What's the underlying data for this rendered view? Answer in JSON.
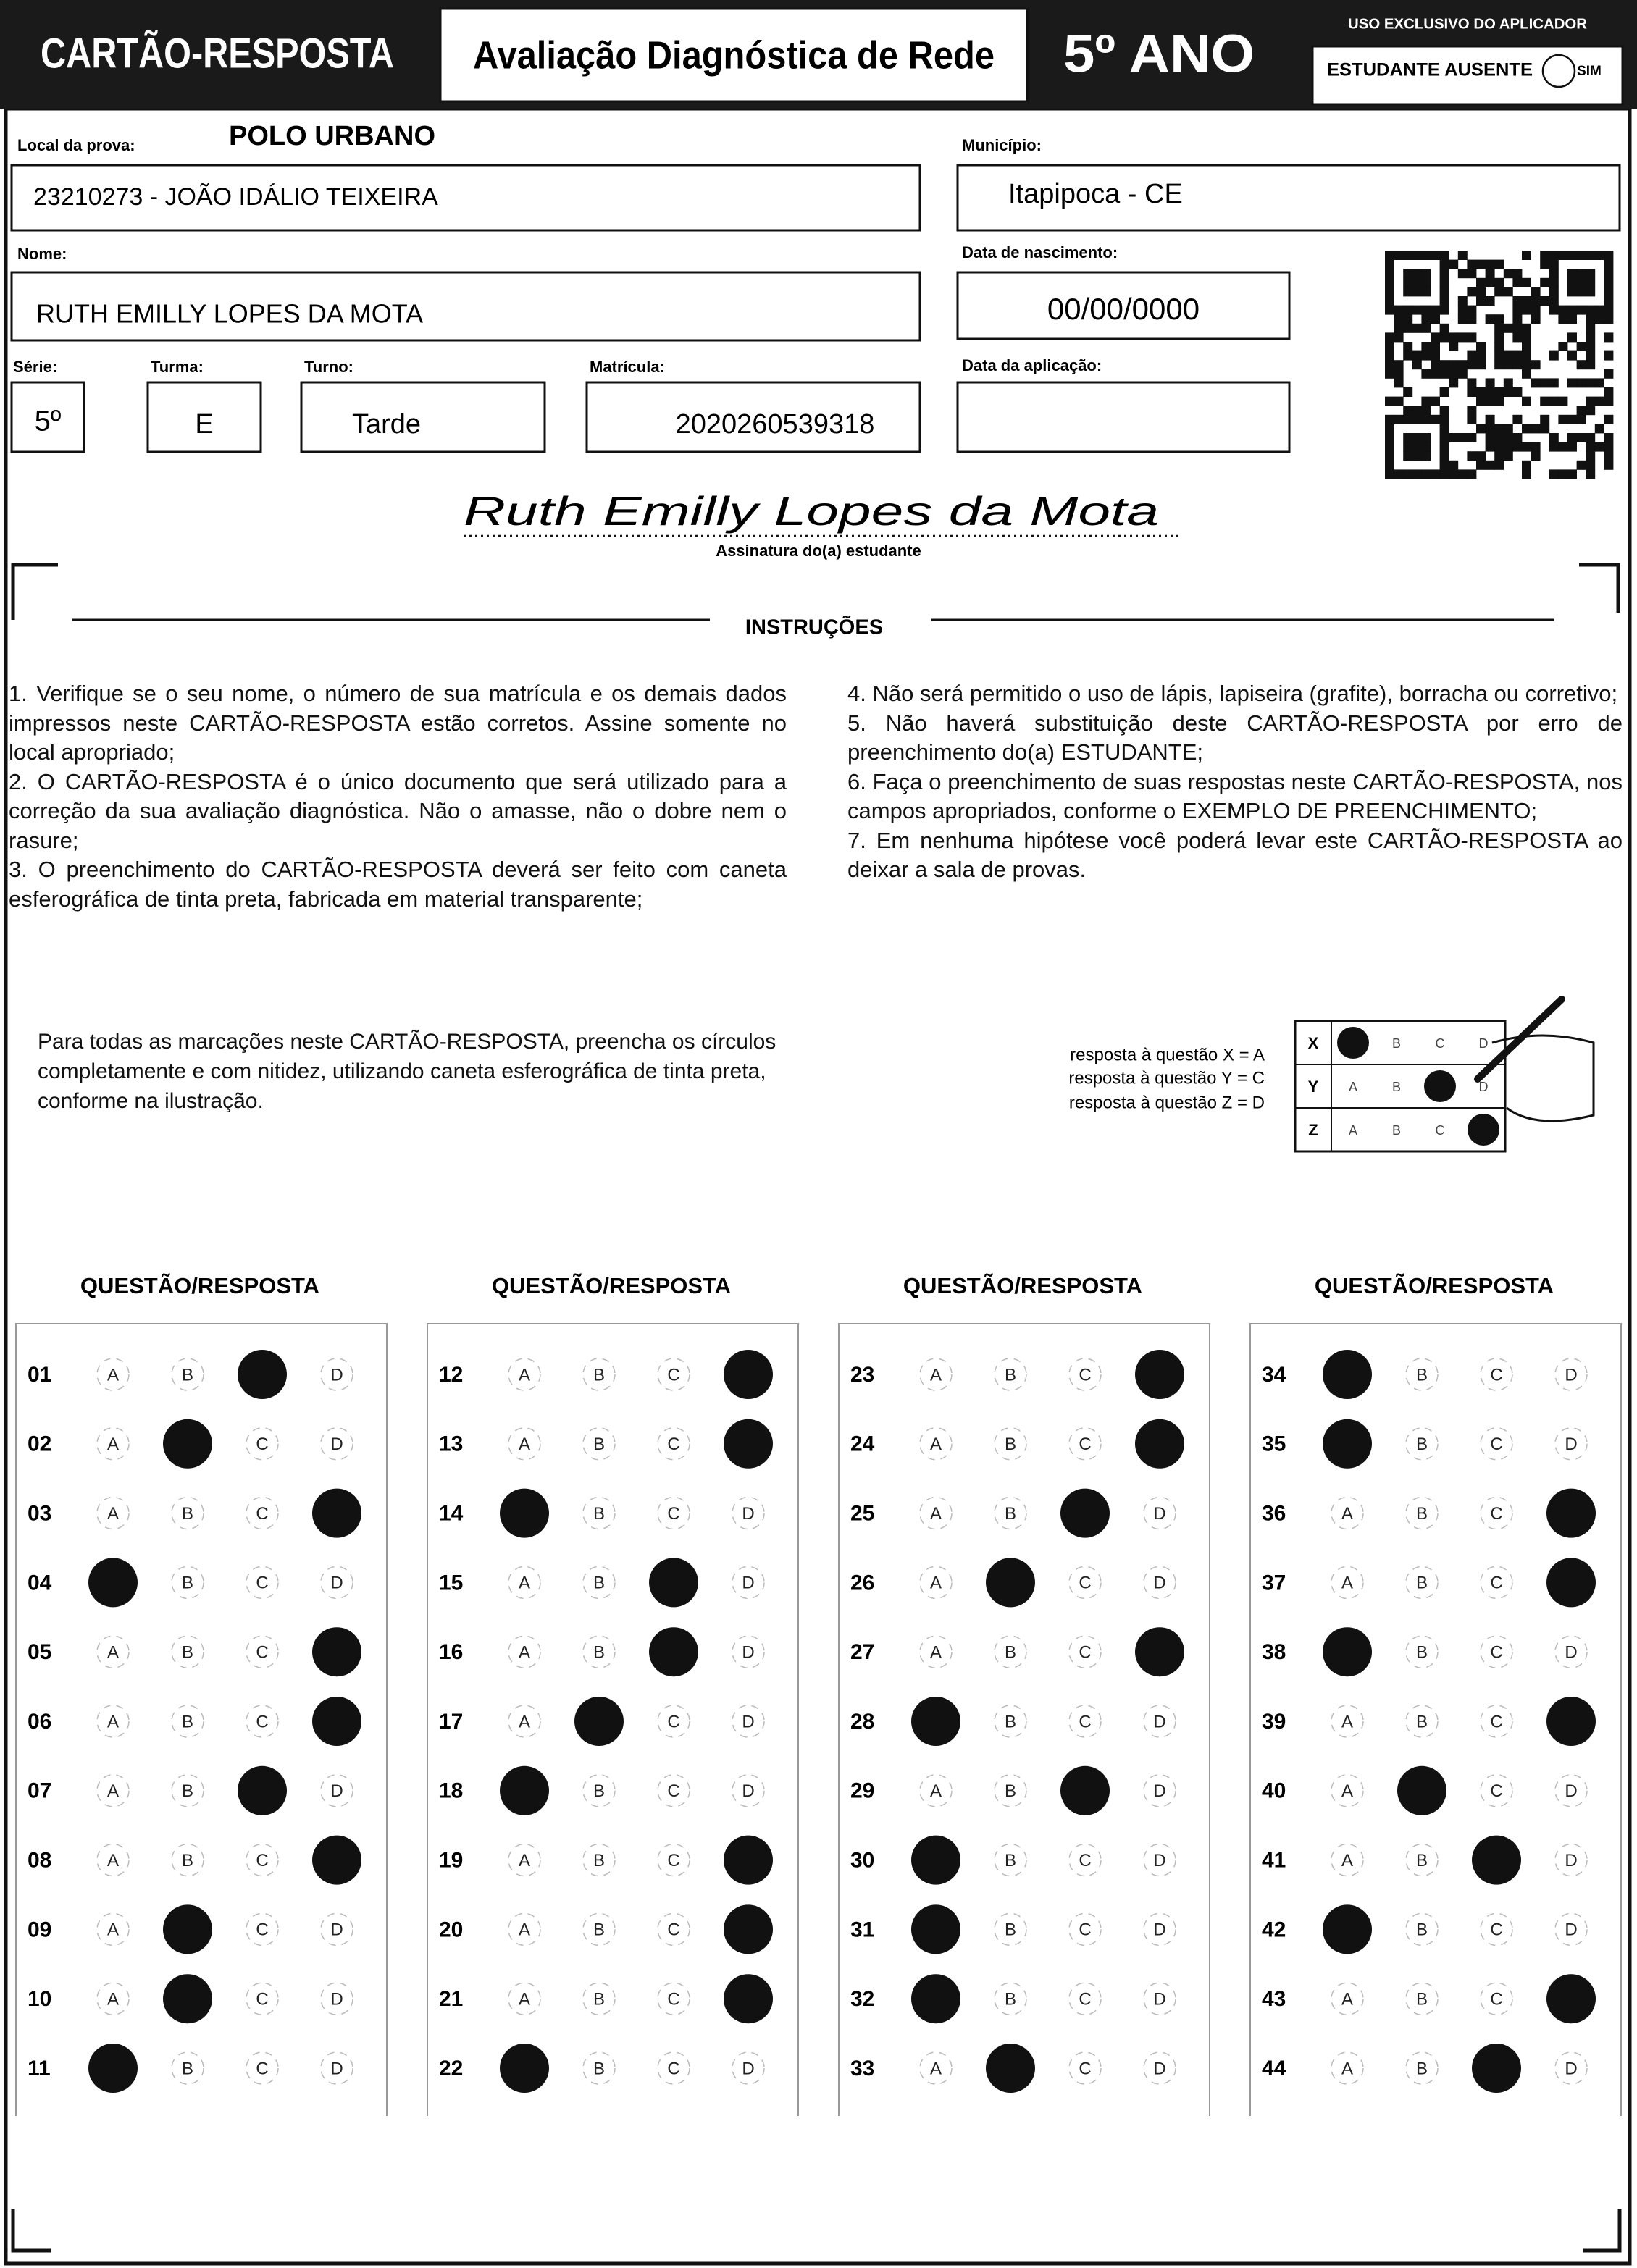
{
  "header": {
    "title": "CARTÃO-RESPOSTA",
    "subtitle": "Avaliação Diagnóstica de Rede",
    "grade": "5º ANO",
    "applicator_label": "USO EXCLUSIVO DO APLICADOR",
    "absent_label": "ESTUDANTE AUSENTE",
    "absent_option": "SIM"
  },
  "fields": {
    "location": {
      "label": "Local da prova:",
      "value": "POLO URBANO",
      "school": "23210273 - JOÃO IDÁLIO TEIXEIRA"
    },
    "municipality": {
      "label": "Município:",
      "value": "Itapipoca - CE"
    },
    "name": {
      "label": "Nome:",
      "value": "RUTH EMILLY LOPES DA MOTA"
    },
    "birth_date": {
      "label": "Data de nascimento:",
      "value": "00/00/0000"
    },
    "grade": {
      "label": "Série:",
      "value": "5º"
    },
    "class": {
      "label": "Turma:",
      "value": "E"
    },
    "shift": {
      "label": "Turno:",
      "value": "Tarde"
    },
    "enrollment": {
      "label": "Matrícula:",
      "value": "2020260539318"
    },
    "application_date": {
      "label": "Data da aplicação:"
    }
  },
  "signature": {
    "text": "Ruth Emilly Lopes da Mota",
    "label": "Assinatura do(a) estudante"
  },
  "instructions": {
    "title": "INSTRUÇÕES",
    "items": [
      "1. Verifique se o seu nome, o número de sua matrícula e os demais dados impressos neste CARTÃO-RESPOSTA estão corretos. Assine somente no local apropriado;",
      "2. O CARTÃO-RESPOSTA é o único documento que será utilizado para a correção da sua avaliação diagnóstica. Não o amasse, não o dobre nem o rasure;",
      "3. O preenchimento do CARTÃO-RESPOSTA deverá ser feito com caneta esferográfica de tinta preta, fabricada em material transparente;",
      "4. Não será permitido o uso de lápis, lapiseira (grafite), borracha ou corretivo;",
      "5. Não haverá substituição deste CARTÃO-RESPOSTA por erro de preenchimento do(a) ESTUDANTE;",
      "6. Faça o preenchimento de suas respostas neste CARTÃO-RESPOSTA, nos campos apropriados, conforme o EXEMPLO DE PREENCHIMENTO;",
      "7. Em nenhuma hipótese você poderá levar este CARTÃO-RESPOSTA ao deixar a sala de provas."
    ]
  },
  "fill_note": "Para todas as marcações neste CARTÃO-RESPOSTA, preencha os círculos completamente e com nitidez, utilizando caneta esferográfica de tinta preta, conforme na ilustração.",
  "example": {
    "lines": [
      "resposta à questão X = A",
      "resposta à questão Y = C",
      "resposta à questão Z = D"
    ],
    "options": [
      "A",
      "B",
      "C",
      "D"
    ],
    "rows": [
      {
        "label": "X",
        "marked": "A"
      },
      {
        "label": "Y",
        "marked": "C"
      },
      {
        "label": "Z",
        "marked": "D"
      }
    ]
  },
  "answers": {
    "heading": "QUESTÃO/RESPOSTA",
    "options": [
      "A",
      "B",
      "C",
      "D"
    ],
    "per_column": 11,
    "questions": [
      {
        "number": "01",
        "marked": "C"
      },
      {
        "number": "02",
        "marked": "B"
      },
      {
        "number": "03",
        "marked": "D"
      },
      {
        "number": "04",
        "marked": "A"
      },
      {
        "number": "05",
        "marked": "D"
      },
      {
        "number": "06",
        "marked": "D"
      },
      {
        "number": "07",
        "marked": "C"
      },
      {
        "number": "08",
        "marked": "D"
      },
      {
        "number": "09",
        "marked": "B"
      },
      {
        "number": "10",
        "marked": "B"
      },
      {
        "number": "11",
        "marked": "A"
      },
      {
        "number": "12",
        "marked": "D"
      },
      {
        "number": "13",
        "marked": "D"
      },
      {
        "number": "14",
        "marked": "A"
      },
      {
        "number": "15",
        "marked": "C"
      },
      {
        "number": "16",
        "marked": "C"
      },
      {
        "number": "17",
        "marked": "B"
      },
      {
        "number": "18",
        "marked": "A"
      },
      {
        "number": "19",
        "marked": "D"
      },
      {
        "number": "20",
        "marked": "D"
      },
      {
        "number": "21",
        "marked": "D"
      },
      {
        "number": "22",
        "marked": "A"
      },
      {
        "number": "23",
        "marked": "D"
      },
      {
        "number": "24",
        "marked": "D"
      },
      {
        "number": "25",
        "marked": "C"
      },
      {
        "number": "26",
        "marked": "B"
      },
      {
        "number": "27",
        "marked": "D"
      },
      {
        "number": "28",
        "marked": "A"
      },
      {
        "number": "29",
        "marked": "C"
      },
      {
        "number": "30",
        "marked": "A"
      },
      {
        "number": "31",
        "marked": "A"
      },
      {
        "number": "32",
        "marked": "A"
      },
      {
        "number": "33",
        "marked": "B"
      },
      {
        "number": "34",
        "marked": "A"
      },
      {
        "number": "35",
        "marked": "A"
      },
      {
        "number": "36",
        "marked": "D"
      },
      {
        "number": "37",
        "marked": "D"
      },
      {
        "number": "38",
        "marked": "A"
      },
      {
        "number": "39",
        "marked": "D"
      },
      {
        "number": "40",
        "marked": "B"
      },
      {
        "number": "41",
        "marked": "C"
      },
      {
        "number": "42",
        "marked": "A"
      },
      {
        "number": "43",
        "marked": "D"
      },
      {
        "number": "44",
        "marked": "C"
      }
    ]
  }
}
